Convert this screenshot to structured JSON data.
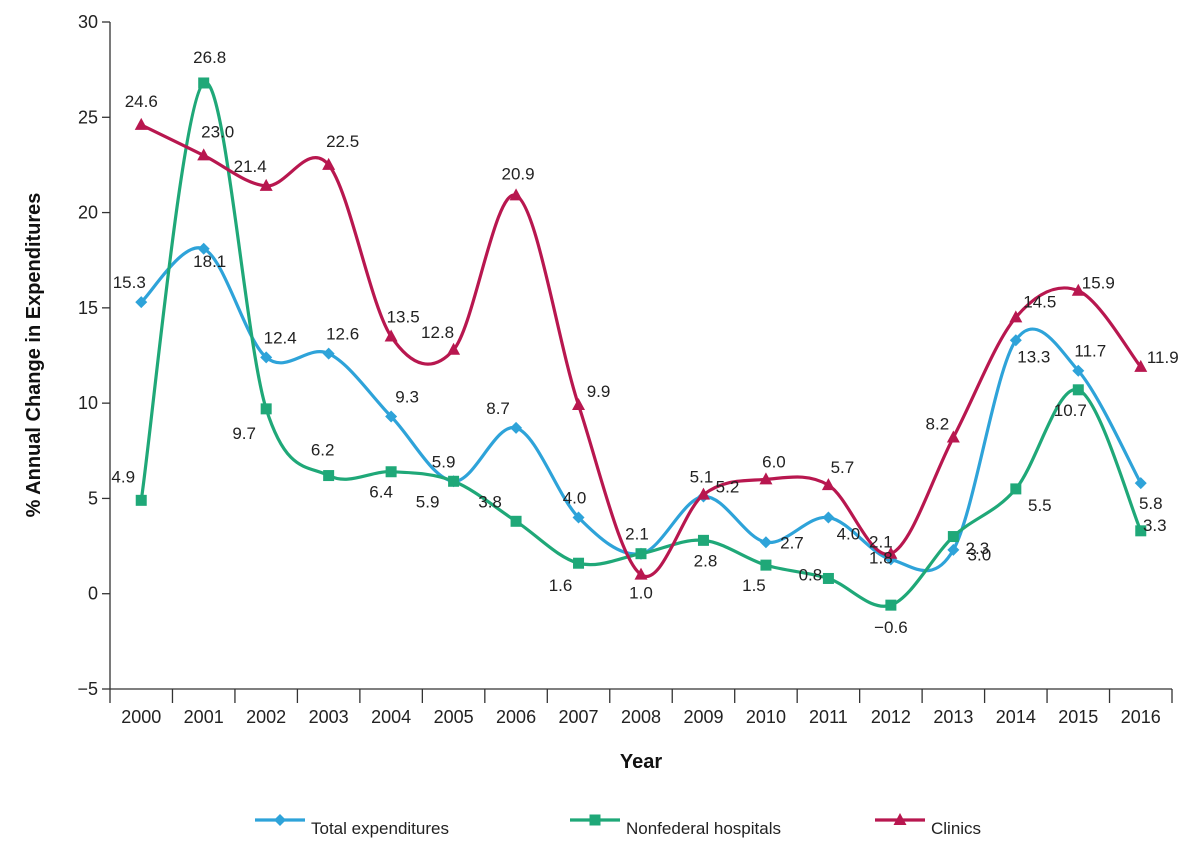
{
  "chart_data": {
    "type": "line",
    "title": "",
    "xlabel": "Year",
    "ylabel": "% Annual Change in Expenditures",
    "ylim": [
      -5,
      30
    ],
    "yticks": [
      -5,
      0,
      5,
      10,
      15,
      20,
      25,
      30
    ],
    "ytick_labels": [
      "−5",
      "0",
      "5",
      "10",
      "15",
      "20",
      "25",
      "30"
    ],
    "categories": [
      "2000",
      "2001",
      "2002",
      "2003",
      "2004",
      "2005",
      "2006",
      "2007",
      "2008",
      "2009",
      "2010",
      "2011",
      "2012",
      "2013",
      "2014",
      "2015",
      "2016"
    ],
    "legend_position": "bottom",
    "series": [
      {
        "name": "Total expenditures",
        "color": "#2ea3d9",
        "marker": "diamond",
        "values": [
          15.3,
          18.1,
          12.4,
          12.6,
          9.3,
          5.9,
          8.7,
          4.0,
          2.1,
          5.1,
          2.7,
          4.0,
          1.8,
          2.3,
          13.3,
          11.7,
          5.8
        ],
        "labels": [
          "15.3",
          "18.1",
          "12.4",
          "12.6",
          "9.3",
          "5.9",
          "8.7",
          "4.0",
          "2.1",
          "5.1",
          "2.7",
          "4.0",
          "1.8",
          "2.3",
          "13.3",
          "11.7",
          "5.8"
        ]
      },
      {
        "name": "Nonfederal hospitals",
        "color": "#1fa878",
        "marker": "square",
        "values": [
          4.9,
          26.8,
          9.7,
          6.2,
          6.4,
          5.9,
          3.8,
          1.6,
          2.1,
          2.8,
          1.5,
          0.8,
          -0.6,
          3.0,
          5.5,
          10.7,
          3.3
        ],
        "labels": [
          "4.9",
          "26.8",
          "9.7",
          "6.2",
          "6.4",
          "5.9",
          "3.8",
          "1.6",
          "",
          "2.8",
          "1.5",
          "0.8",
          "−0.6",
          "3.0",
          "5.5",
          "10.7",
          "3.3"
        ]
      },
      {
        "name": "Clinics",
        "color": "#b8174f",
        "marker": "triangle",
        "values": [
          24.6,
          23.0,
          21.4,
          22.5,
          13.5,
          12.8,
          20.9,
          9.9,
          1.0,
          5.2,
          6.0,
          5.7,
          2.1,
          8.2,
          14.5,
          15.9,
          11.9
        ],
        "labels": [
          "24.6",
          "23.0",
          "21.4",
          "22.5",
          "13.5",
          "12.8",
          "20.9",
          "9.9",
          "1.0",
          "5.2",
          "6.0",
          "5.7",
          "2.1",
          "8.2",
          "14.5",
          "15.9",
          "11.9"
        ]
      }
    ]
  }
}
